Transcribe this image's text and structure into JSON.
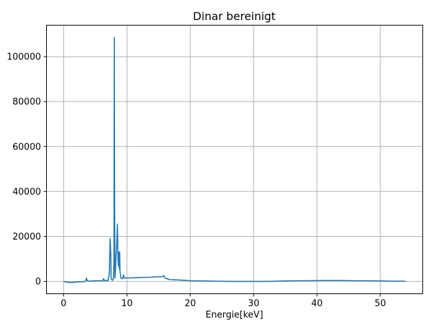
{
  "chart_data": {
    "type": "line",
    "title": "Dinar bereinigt",
    "xlabel": "Energie[keV]",
    "ylabel": "",
    "xlim": [
      -2.7,
      56.7
    ],
    "ylim": [
      -5500,
      114000
    ],
    "xticks": [
      0,
      10,
      20,
      30,
      40,
      50
    ],
    "yticks": [
      0,
      20000,
      40000,
      60000,
      80000,
      100000
    ],
    "grid": true,
    "color": "#1f77b4",
    "series": [
      {
        "x": [
          0,
          0.5,
          0.8,
          1.5,
          2.5,
          3.3,
          3.5,
          3.6,
          3.7,
          3.9,
          4.5,
          5.5,
          6.2,
          6.3,
          6.5,
          6.8,
          7.0,
          7.2,
          7.35,
          7.45,
          7.5,
          7.6,
          7.75,
          7.85,
          7.95,
          8.0,
          8.05,
          8.1,
          8.15,
          8.25,
          8.4,
          8.5,
          8.6,
          8.65,
          8.7,
          8.8,
          8.85,
          8.9,
          8.95,
          9.0,
          9.1,
          9.3,
          9.45,
          9.6,
          9.8,
          10.0,
          11.0,
          12.0,
          13.0,
          14.0,
          15.0,
          15.5,
          15.8,
          16.0,
          16.3,
          16.8,
          17.5,
          18.5,
          20.0,
          22.0,
          24.0,
          27.0,
          30.0,
          33.0,
          35.0,
          38.0,
          41.0,
          44.0,
          46.0,
          48.0,
          50.0,
          52.0,
          54.0
        ],
        "y": [
          0,
          -300,
          -500,
          -400,
          -200,
          -100,
          300,
          1500,
          400,
          100,
          200,
          300,
          200,
          1200,
          200,
          500,
          300,
          3000,
          19000,
          12000,
          1200,
          800,
          500,
          1200,
          8000,
          108500,
          40000,
          1500,
          3000,
          9000,
          18000,
          25500,
          9000,
          7000,
          13000,
          5500,
          13200,
          4500,
          3500,
          2000,
          1300,
          1200,
          2900,
          1400,
          1600,
          1500,
          1600,
          1700,
          1800,
          1900,
          2100,
          2000,
          2600,
          1500,
          1200,
          800,
          700,
          600,
          300,
          200,
          100,
          0,
          0,
          50,
          200,
          300,
          400,
          400,
          300,
          300,
          200,
          100,
          100
        ]
      }
    ]
  }
}
